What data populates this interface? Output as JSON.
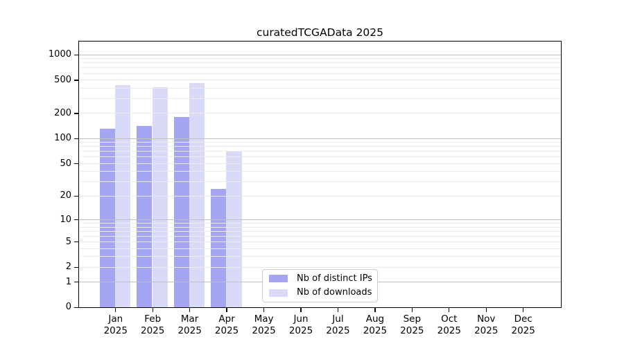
{
  "chart_data": {
    "type": "bar",
    "title": "curatedTCGAData 2025",
    "yscale": "log1p",
    "ylim": [
      0,
      1465
    ],
    "yticks": [
      0,
      1,
      2,
      5,
      10,
      20,
      50,
      100,
      200,
      500,
      1000
    ],
    "grid": "horizontal, minor log lines light gray, decade lines (1,10,100,1000) gray, drawn over bars",
    "legend_position": "lower center",
    "categories": [
      "Jan",
      "Feb",
      "Mar",
      "Apr",
      "May",
      "Jun",
      "Jul",
      "Aug",
      "Sep",
      "Oct",
      "Nov",
      "Dec"
    ],
    "x_tick_year": "2025",
    "series": [
      {
        "name": "Nb of distinct IPs",
        "color": "#a5a5f4",
        "values": [
          134,
          145,
          187,
          25,
          0,
          0,
          0,
          0,
          0,
          0,
          0,
          0
        ]
      },
      {
        "name": "Nb of downloads",
        "color": "#d9d9f8",
        "values": [
          447,
          418,
          476,
          73,
          0,
          0,
          0,
          0,
          0,
          0,
          0,
          0
        ]
      }
    ],
    "colors": {
      "spine": "#000000",
      "major_gridline": "#c0c0c0",
      "minor_gridline": "#ececec",
      "legend_border": "#cccccc",
      "text": "#000000"
    }
  }
}
